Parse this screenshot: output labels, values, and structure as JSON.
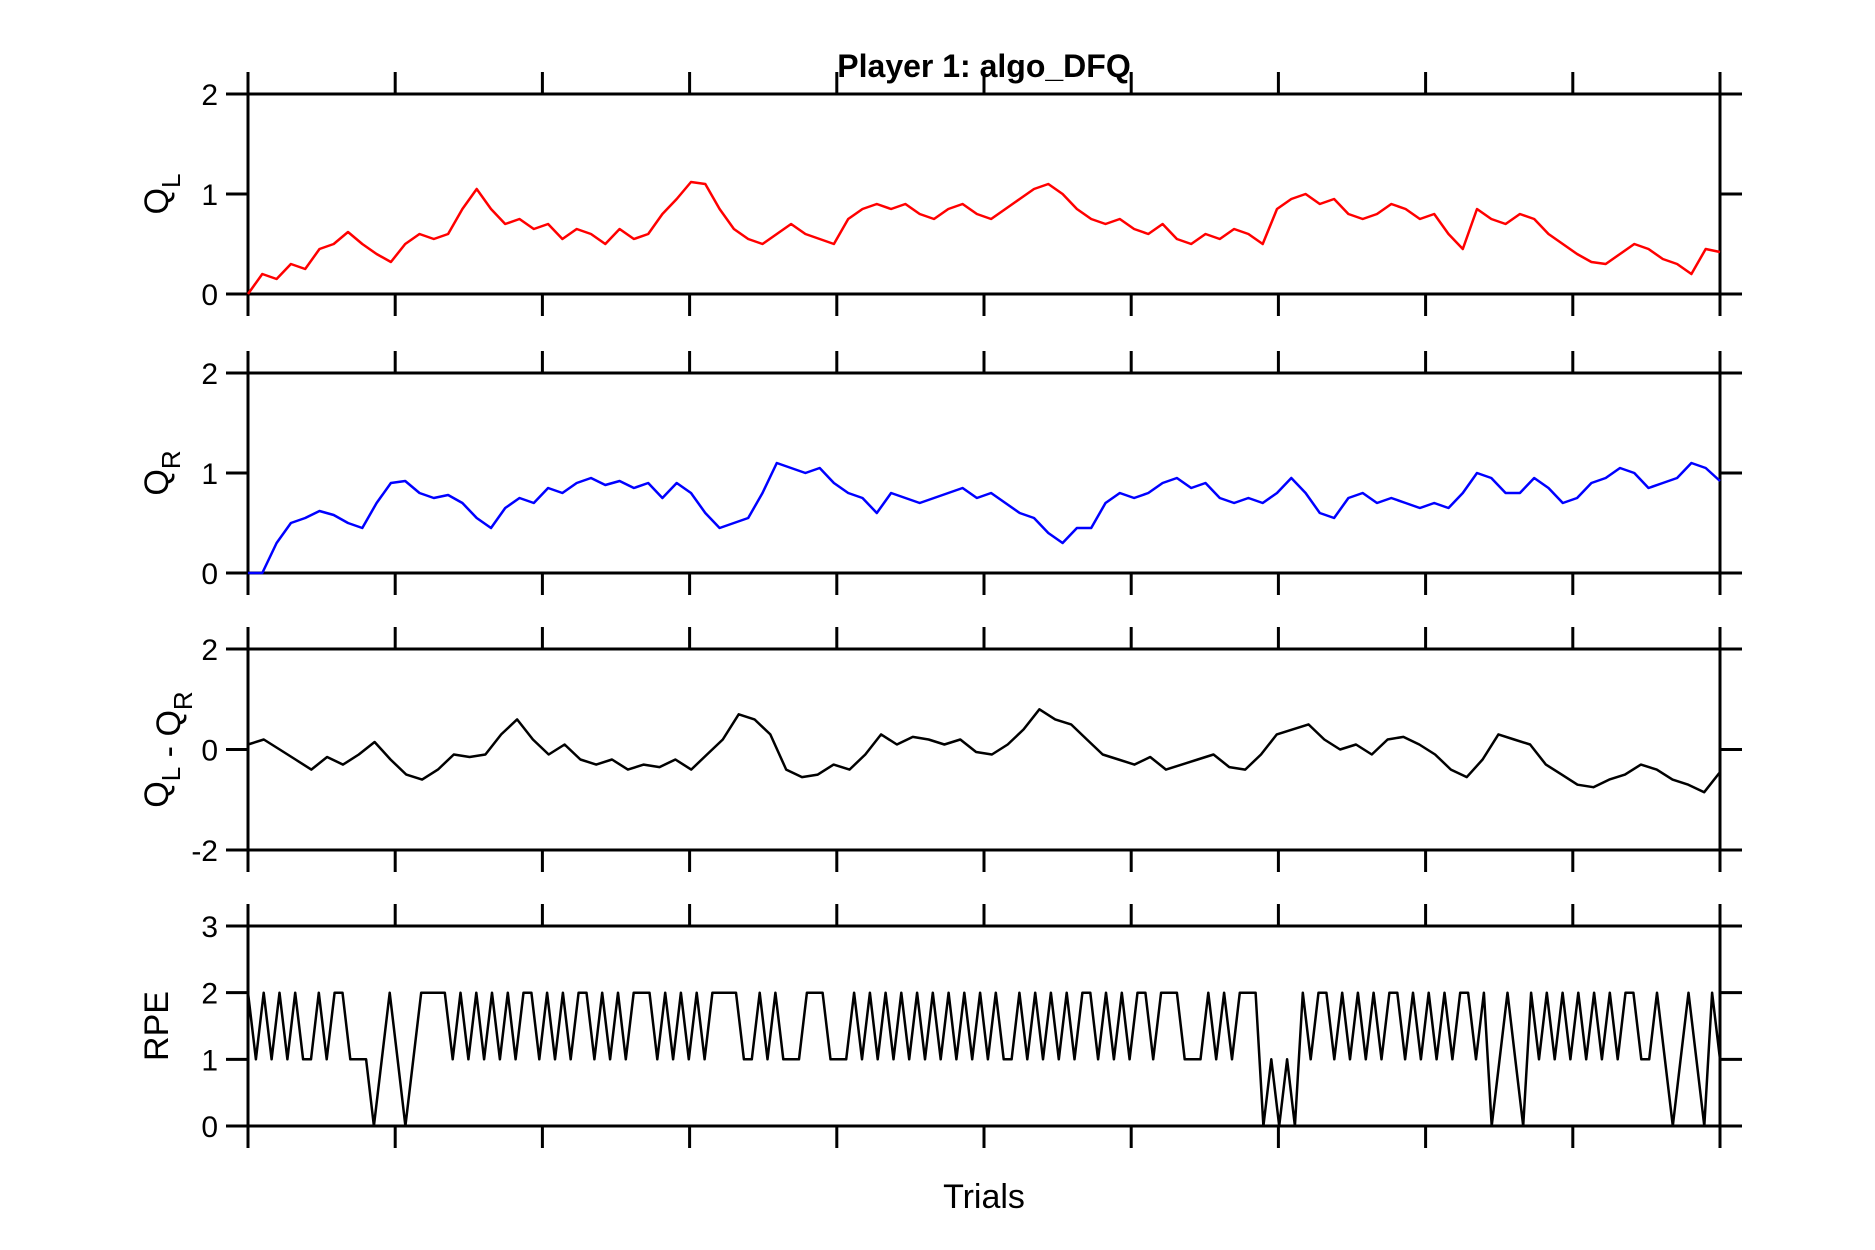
{
  "chart_data": [
    {
      "type": "line",
      "title": "Player 1: algo_DFQ",
      "ylabel": [
        {
          "text": "Q",
          "sub": "L"
        }
      ],
      "ylim": [
        0,
        2
      ],
      "yticks": [
        0,
        1,
        2
      ],
      "series": [
        {
          "color": "#ff0000",
          "values": [
            0,
            0.2,
            0.15,
            0.3,
            0.25,
            0.45,
            0.5,
            0.62,
            0.5,
            0.4,
            0.32,
            0.5,
            0.6,
            0.55,
            0.6,
            0.85,
            1.05,
            0.85,
            0.7,
            0.75,
            0.65,
            0.7,
            0.55,
            0.65,
            0.6,
            0.5,
            0.65,
            0.55,
            0.6,
            0.8,
            0.95,
            1.12,
            1.1,
            0.85,
            0.65,
            0.55,
            0.5,
            0.6,
            0.7,
            0.6,
            0.55,
            0.5,
            0.75,
            0.85,
            0.9,
            0.85,
            0.9,
            0.8,
            0.75,
            0.85,
            0.9,
            0.8,
            0.75,
            0.85,
            0.95,
            1.05,
            1.1,
            1.0,
            0.85,
            0.75,
            0.7,
            0.75,
            0.65,
            0.6,
            0.7,
            0.55,
            0.5,
            0.6,
            0.55,
            0.65,
            0.6,
            0.5,
            0.85,
            0.95,
            1.0,
            0.9,
            0.95,
            0.8,
            0.75,
            0.8,
            0.9,
            0.85,
            0.75,
            0.8,
            0.6,
            0.45,
            0.85,
            0.75,
            0.7,
            0.8,
            0.75,
            0.6,
            0.5,
            0.4,
            0.32,
            0.3,
            0.4,
            0.5,
            0.45,
            0.35,
            0.3,
            0.2,
            0.45,
            0.42
          ]
        }
      ]
    },
    {
      "type": "line",
      "ylabel": [
        {
          "text": "Q",
          "sub": "R"
        }
      ],
      "ylim": [
        0,
        2
      ],
      "yticks": [
        0,
        1,
        2
      ],
      "series": [
        {
          "color": "#0000ff",
          "values": [
            0,
            0,
            0.3,
            0.5,
            0.55,
            0.62,
            0.58,
            0.5,
            0.45,
            0.7,
            0.9,
            0.92,
            0.8,
            0.75,
            0.78,
            0.7,
            0.55,
            0.45,
            0.65,
            0.75,
            0.7,
            0.85,
            0.8,
            0.9,
            0.95,
            0.88,
            0.92,
            0.85,
            0.9,
            0.75,
            0.9,
            0.8,
            0.6,
            0.45,
            0.5,
            0.55,
            0.8,
            1.1,
            1.05,
            1.0,
            1.05,
            0.9,
            0.8,
            0.75,
            0.6,
            0.8,
            0.75,
            0.7,
            0.75,
            0.8,
            0.85,
            0.75,
            0.8,
            0.7,
            0.6,
            0.55,
            0.4,
            0.3,
            0.45,
            0.45,
            0.7,
            0.8,
            0.75,
            0.8,
            0.9,
            0.95,
            0.85,
            0.9,
            0.75,
            0.7,
            0.75,
            0.7,
            0.8,
            0.95,
            0.8,
            0.6,
            0.55,
            0.75,
            0.8,
            0.7,
            0.75,
            0.7,
            0.65,
            0.7,
            0.65,
            0.8,
            1.0,
            0.95,
            0.8,
            0.8,
            0.95,
            0.85,
            0.7,
            0.75,
            0.9,
            0.95,
            1.05,
            1.0,
            0.85,
            0.9,
            0.95,
            1.1,
            1.05,
            0.92
          ]
        }
      ]
    },
    {
      "type": "line",
      "ylabel": [
        {
          "text": "Q",
          "sub": "L"
        },
        {
          "text": " - Q",
          "sub": "R"
        }
      ],
      "ylim": [
        -2,
        2
      ],
      "yticks": [
        -2,
        0,
        2
      ],
      "series": [
        {
          "color": "#000000",
          "values": [
            0.1,
            0.2,
            0.0,
            -0.2,
            -0.4,
            -0.15,
            -0.3,
            -0.1,
            0.15,
            -0.2,
            -0.5,
            -0.6,
            -0.4,
            -0.1,
            -0.15,
            -0.1,
            0.3,
            0.6,
            0.2,
            -0.1,
            0.1,
            -0.2,
            -0.3,
            -0.2,
            -0.4,
            -0.3,
            -0.35,
            -0.2,
            -0.4,
            -0.1,
            0.2,
            0.7,
            0.6,
            0.3,
            -0.4,
            -0.55,
            -0.5,
            -0.3,
            -0.4,
            -0.1,
            0.3,
            0.1,
            0.25,
            0.2,
            0.1,
            0.2,
            -0.05,
            -0.1,
            0.1,
            0.4,
            0.8,
            0.6,
            0.5,
            0.2,
            -0.1,
            -0.2,
            -0.3,
            -0.15,
            -0.4,
            -0.3,
            -0.2,
            -0.1,
            -0.35,
            -0.4,
            -0.1,
            0.3,
            0.4,
            0.5,
            0.2,
            0.0,
            0.1,
            -0.1,
            0.2,
            0.25,
            0.1,
            -0.1,
            -0.4,
            -0.55,
            -0.2,
            0.3,
            0.2,
            0.1,
            -0.3,
            -0.5,
            -0.7,
            -0.75,
            -0.6,
            -0.5,
            -0.3,
            -0.4,
            -0.6,
            -0.7,
            -0.85,
            -0.45
          ]
        }
      ]
    },
    {
      "type": "line",
      "ylabel": [
        {
          "text": "RPE"
        }
      ],
      "xlabel": "Trials",
      "ylim": [
        0,
        3
      ],
      "yticks": [
        0,
        1,
        2,
        3
      ],
      "series": [
        {
          "color": "#000000",
          "values": [
            2,
            1,
            2,
            1,
            2,
            1,
            2,
            1,
            1,
            2,
            1,
            2,
            2,
            1,
            1,
            1,
            0,
            1,
            2,
            1,
            0,
            1,
            2,
            2,
            2,
            2,
            1,
            2,
            1,
            2,
            1,
            2,
            1,
            2,
            1,
            2,
            2,
            1,
            2,
            1,
            2,
            1,
            2,
            2,
            1,
            2,
            1,
            2,
            1,
            2,
            2,
            2,
            1,
            2,
            1,
            2,
            1,
            2,
            1,
            2,
            2,
            2,
            2,
            1,
            1,
            2,
            1,
            2,
            1,
            1,
            1,
            2,
            2,
            2,
            1,
            1,
            1,
            2,
            1,
            2,
            1,
            2,
            1,
            2,
            1,
            2,
            1,
            2,
            1,
            2,
            1,
            2,
            1,
            2,
            1,
            2,
            1,
            1,
            2,
            1,
            2,
            1,
            2,
            1,
            2,
            1,
            2,
            2,
            1,
            2,
            1,
            2,
            1,
            2,
            2,
            1,
            2,
            2,
            2,
            1,
            1,
            1,
            2,
            1,
            2,
            1,
            2,
            2,
            2,
            0,
            1,
            0,
            1,
            0,
            2,
            1,
            2,
            2,
            1,
            2,
            1,
            2,
            1,
            2,
            1,
            2,
            2,
            1,
            2,
            1,
            2,
            1,
            2,
            1,
            2,
            2,
            1,
            2,
            0,
            1,
            2,
            1,
            0,
            2,
            1,
            2,
            1,
            2,
            1,
            2,
            1,
            2,
            1,
            2,
            1,
            2,
            2,
            1,
            1,
            2,
            1,
            0,
            1,
            2,
            1,
            0,
            2,
            1
          ]
        }
      ]
    }
  ]
}
